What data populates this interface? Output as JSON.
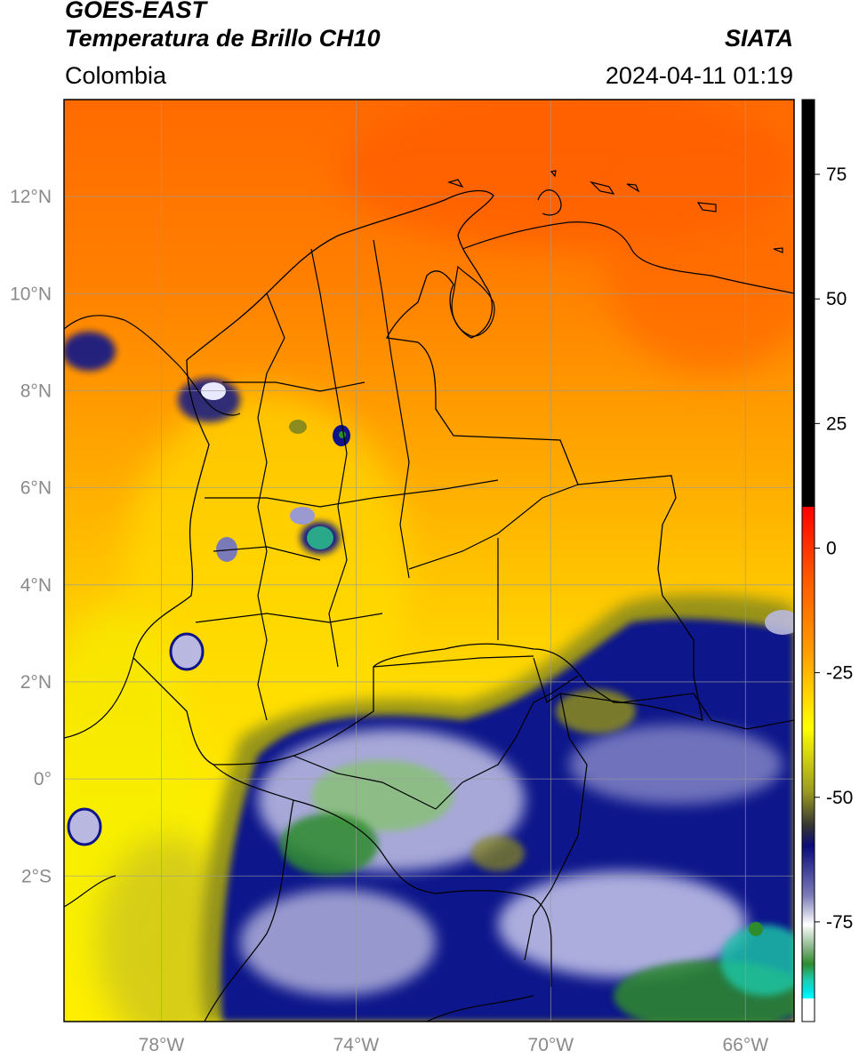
{
  "header": {
    "satellite": "GOES-EAST",
    "product": "Temperatura de Brillo CH10",
    "organization": "SIATA",
    "region": "Colombia",
    "timestamp": "2024-04-11 01:19"
  },
  "map": {
    "lon_range": [
      -80.0,
      -65.0
    ],
    "lat_range": [
      -5.0,
      14.0
    ],
    "lat_ticks": [
      {
        "value": 12,
        "label": "12°N"
      },
      {
        "value": 10,
        "label": "10°N"
      },
      {
        "value": 8,
        "label": "8°N"
      },
      {
        "value": 6,
        "label": "6°N"
      },
      {
        "value": 4,
        "label": "4°N"
      },
      {
        "value": 2,
        "label": "2°N"
      },
      {
        "value": 0,
        "label": "0°"
      },
      {
        "value": -2,
        "label": "2°S"
      }
    ],
    "lon_ticks": [
      {
        "value": -78,
        "label": "78°W"
      },
      {
        "value": -74,
        "label": "74°W"
      },
      {
        "value": -70,
        "label": "70°W"
      },
      {
        "value": -66,
        "label": "66°W"
      }
    ],
    "grid": true
  },
  "colorbar": {
    "range": [
      -95,
      90
    ],
    "ticks": [
      {
        "value": 75,
        "label": "75"
      },
      {
        "value": 50,
        "label": "50"
      },
      {
        "value": 25,
        "label": "25"
      },
      {
        "value": 0,
        "label": "0"
      },
      {
        "value": -25,
        "label": "-25"
      },
      {
        "value": -50,
        "label": "-50"
      },
      {
        "value": -75,
        "label": "-75"
      }
    ],
    "colors": {
      "black": "#000000",
      "red": "#ff1a00",
      "orange": "#ff8a00",
      "yellow": "#ffff00",
      "olive": "#8c8c1e",
      "navy": "#10148a",
      "white": "#ffffff",
      "green": "#2e8b2e",
      "teal": "#1fc8a8",
      "cyan": "#00e5e5"
    }
  }
}
